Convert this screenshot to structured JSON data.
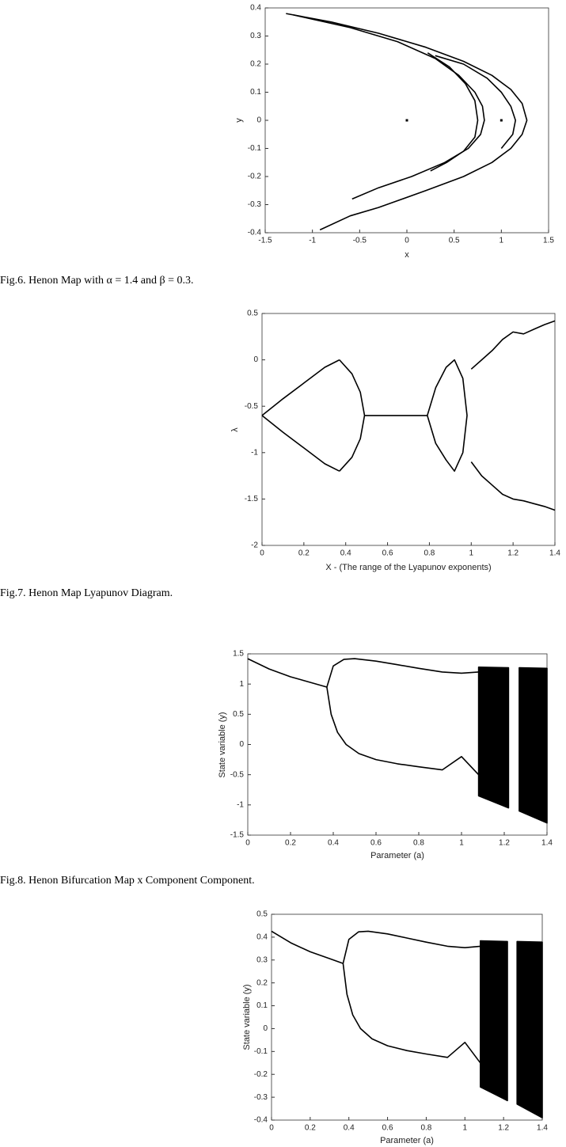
{
  "chart_data": [
    {
      "type": "line",
      "caption": "Fig.6. Henon Map with α = 1.4 and β = 0.3.",
      "x_label": "x",
      "y_label": "y",
      "color": "#000000",
      "xlim": [
        -1.5,
        1.5
      ],
      "xticks": [
        -1.5,
        -1,
        -0.5,
        0,
        0.5,
        1,
        1.5
      ],
      "ylim": [
        -0.4,
        0.4
      ],
      "yticks": [
        -0.4,
        -0.3,
        -0.2,
        -0.1,
        0,
        0.1,
        0.2,
        0.3,
        0.4
      ],
      "series": [
        {
          "x": [
            -1.28,
            -0.8,
            -0.3,
            0.2,
            0.6,
            0.9,
            1.1,
            1.22,
            1.27,
            1.22,
            1.1,
            0.9,
            0.6,
            0.2,
            -0.3,
            -0.6,
            -0.92
          ],
          "values": [
            0.38,
            0.35,
            0.31,
            0.26,
            0.21,
            0.16,
            0.11,
            0.06,
            0.0,
            -0.05,
            -0.1,
            -0.15,
            -0.2,
            -0.25,
            -0.31,
            -0.34,
            -0.39
          ]
        },
        {
          "x": [
            -1.2,
            -0.6,
            -0.1,
            0.3,
            0.55,
            0.72,
            0.8,
            0.82,
            0.78,
            0.65,
            0.4,
            0.05,
            -0.3,
            -0.58
          ],
          "values": [
            0.375,
            0.33,
            0.28,
            0.22,
            0.16,
            0.1,
            0.05,
            0.0,
            -0.05,
            -0.1,
            -0.15,
            -0.2,
            -0.24,
            -0.28
          ]
        },
        {
          "x": [
            0.22,
            0.45,
            0.62,
            0.72,
            0.75,
            0.72,
            0.6,
            0.42,
            0.25
          ],
          "values": [
            0.24,
            0.19,
            0.13,
            0.07,
            0.0,
            -0.06,
            -0.11,
            -0.15,
            -0.18
          ]
        },
        {
          "x": [
            0.3,
            0.6,
            0.85,
            1.0,
            1.1,
            1.15,
            1.12,
            1.0
          ],
          "values": [
            0.23,
            0.2,
            0.15,
            0.1,
            0.05,
            0.0,
            -0.05,
            -0.1
          ]
        },
        {
          "mode": "markers",
          "x": [
            0,
            1
          ],
          "values": [
            0,
            0
          ]
        }
      ]
    },
    {
      "type": "line",
      "caption": "Fig.7. Henon Map Lyapunov Diagram.",
      "x_label": "X - (The range of the Lyapunov exponents)",
      "y_label": "λ",
      "color": "#000000",
      "xlim": [
        0,
        1.4
      ],
      "xticks": [
        0,
        0.2,
        0.4,
        0.6,
        0.8,
        1,
        1.2,
        1.4
      ],
      "ylim": [
        -2,
        0.5
      ],
      "yticks": [
        -2,
        -1.5,
        -1,
        -0.5,
        0,
        0.5
      ],
      "series": [
        {
          "x": [
            0,
            0.1,
            0.2,
            0.3,
            0.37
          ],
          "values": [
            -0.6,
            -0.42,
            -0.25,
            -0.08,
            0
          ]
        },
        {
          "x": [
            0,
            0.1,
            0.2,
            0.3,
            0.37
          ],
          "values": [
            -0.6,
            -0.78,
            -0.95,
            -1.12,
            -1.2
          ]
        },
        {
          "x": [
            0.37,
            0.43,
            0.47,
            0.49,
            0.47,
            0.43,
            0.37
          ],
          "values": [
            0,
            -0.15,
            -0.35,
            -0.6,
            -0.85,
            -1.05,
            -1.2
          ]
        },
        {
          "x": [
            0.49,
            0.79
          ],
          "values": [
            -0.6,
            -0.6
          ]
        },
        {
          "x": [
            0.79,
            0.83,
            0.88,
            0.92,
            0.96,
            0.98,
            0.96,
            0.92,
            0.88,
            0.83,
            0.79
          ],
          "values": [
            -0.6,
            -0.3,
            -0.08,
            0,
            -0.2,
            -0.6,
            -1.0,
            -1.2,
            -1.08,
            -0.9,
            -0.6
          ]
        },
        {
          "x": [
            1.0,
            1.05,
            1.1,
            1.15,
            1.2,
            1.25,
            1.3,
            1.35,
            1.4
          ],
          "values": [
            -0.1,
            0.0,
            0.1,
            0.22,
            0.3,
            0.28,
            0.33,
            0.38,
            0.42
          ]
        },
        {
          "x": [
            1.0,
            1.05,
            1.1,
            1.15,
            1.2,
            1.25,
            1.3,
            1.35,
            1.4
          ],
          "values": [
            -1.1,
            -1.25,
            -1.35,
            -1.45,
            -1.5,
            -1.52,
            -1.55,
            -1.58,
            -1.62
          ]
        }
      ]
    },
    {
      "type": "line",
      "caption": "Fig.8. Henon Bifurcation Map x Component Component.",
      "x_label": "Parameter (a)",
      "y_label": "State variable (y)",
      "color": "#000000",
      "xlim": [
        0,
        1.4
      ],
      "xticks": [
        0,
        0.2,
        0.4,
        0.6,
        0.8,
        1,
        1.2,
        1.4
      ],
      "ylim": [
        -1.5,
        1.5
      ],
      "yticks": [
        -1.5,
        -1,
        -0.5,
        0,
        0.5,
        1,
        1.5
      ],
      "series": [
        {
          "x": [
            0,
            0.1,
            0.2,
            0.3,
            0.37
          ],
          "values": [
            1.42,
            1.25,
            1.12,
            1.02,
            0.95
          ]
        },
        {
          "x": [
            0.37,
            0.4,
            0.45,
            0.5,
            0.6,
            0.7,
            0.8,
            0.91,
            1.0,
            1.08
          ],
          "values": [
            0.95,
            1.3,
            1.41,
            1.42,
            1.38,
            1.32,
            1.26,
            1.2,
            1.18,
            1.2
          ]
        },
        {
          "x": [
            0.37,
            0.39,
            0.42,
            0.46,
            0.52,
            0.6,
            0.7,
            0.8,
            0.91,
            1.0,
            1.08
          ],
          "values": [
            0.95,
            0.5,
            0.2,
            0.0,
            -0.15,
            -0.25,
            -0.32,
            -0.37,
            -0.42,
            -0.2,
            -0.5
          ]
        },
        {
          "mode": "fill",
          "x": [
            1.08,
            1.22,
            1.22,
            1.08
          ],
          "values": [
            1.28,
            1.27,
            -1.05,
            -0.85
          ]
        },
        {
          "mode": "fill",
          "x": [
            1.27,
            1.4,
            1.4,
            1.27
          ],
          "values": [
            1.27,
            1.26,
            -1.3,
            -1.1
          ]
        }
      ]
    },
    {
      "type": "line",
      "x_label": "Parameter (a)",
      "y_label": "State variable (y)",
      "color": "#000000",
      "xlim": [
        0,
        1.4
      ],
      "xticks": [
        0,
        0.2,
        0.4,
        0.6,
        0.8,
        1,
        1.2,
        1.4
      ],
      "ylim": [
        -0.4,
        0.5
      ],
      "yticks": [
        -0.4,
        -0.3,
        -0.2,
        -0.1,
        0,
        0.1,
        0.2,
        0.3,
        0.4,
        0.5
      ],
      "series": [
        {
          "x": [
            0,
            0.1,
            0.2,
            0.3,
            0.37
          ],
          "values": [
            0.426,
            0.375,
            0.336,
            0.306,
            0.285
          ]
        },
        {
          "x": [
            0.37,
            0.4,
            0.45,
            0.5,
            0.6,
            0.7,
            0.8,
            0.91,
            1.0,
            1.08
          ],
          "values": [
            0.285,
            0.39,
            0.423,
            0.426,
            0.414,
            0.396,
            0.378,
            0.36,
            0.354,
            0.36
          ]
        },
        {
          "x": [
            0.37,
            0.39,
            0.42,
            0.46,
            0.52,
            0.6,
            0.7,
            0.8,
            0.91,
            1.0,
            1.08
          ],
          "values": [
            0.285,
            0.15,
            0.06,
            0.0,
            -0.045,
            -0.075,
            -0.096,
            -0.111,
            -0.126,
            -0.06,
            -0.15
          ]
        },
        {
          "mode": "fill",
          "x": [
            1.08,
            1.22,
            1.22,
            1.08
          ],
          "values": [
            0.384,
            0.381,
            -0.315,
            -0.255
          ]
        },
        {
          "mode": "fill",
          "x": [
            1.27,
            1.4,
            1.4,
            1.27
          ],
          "values": [
            0.381,
            0.378,
            -0.39,
            -0.33
          ]
        }
      ]
    }
  ]
}
